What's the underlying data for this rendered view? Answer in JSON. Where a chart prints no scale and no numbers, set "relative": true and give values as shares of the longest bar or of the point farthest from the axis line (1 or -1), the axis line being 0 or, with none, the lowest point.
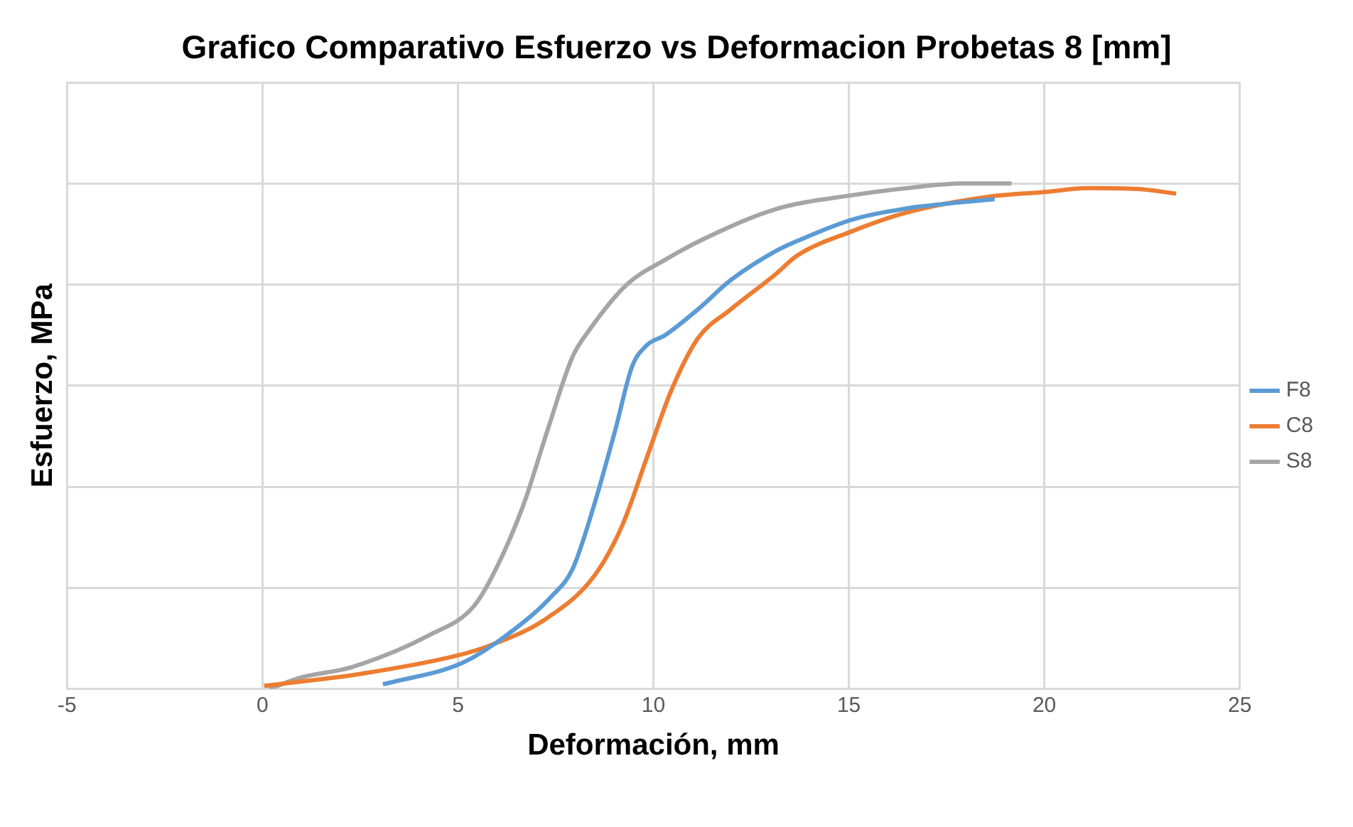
{
  "chart_data": {
    "type": "line",
    "title": "Grafico Comparativo Esfuerzo vs Deformacion Probetas 8 [mm]",
    "xlabel": "Deformación, mm",
    "ylabel": "Esfuerzo, MPa",
    "relative": true,
    "xlim": [
      -5,
      25
    ],
    "xticks": [
      -5,
      0,
      5,
      10,
      15,
      20,
      25
    ],
    "grid": true,
    "legend": "right",
    "marker": "none",
    "line_style": "solid",
    "series": [
      {
        "name": "F8",
        "color": "#5b9bd5",
        "x": [
          3.08,
          5.1,
          6.24,
          7.43,
          7.93,
          8.48,
          9.03,
          9.45,
          9.83,
          10.3,
          11.14,
          11.98,
          13.12,
          13.67,
          15.1,
          16.5,
          17.9,
          18.73
        ],
        "values": [
          0.009,
          0.051,
          0.106,
          0.186,
          0.237,
          0.363,
          0.514,
          0.637,
          0.68,
          0.7,
          0.751,
          0.809,
          0.866,
          0.886,
          0.929,
          0.951,
          0.963,
          0.969
        ]
      },
      {
        "name": "C8",
        "color": "#ed7d31",
        "x": [
          0.04,
          2.45,
          4.98,
          5.82,
          7.22,
          8.48,
          9.2,
          9.87,
          10.46,
          11.14,
          11.98,
          13.12,
          13.67,
          15.1,
          16.5,
          18.6,
          20.0,
          21.14,
          22.4,
          23.37
        ],
        "values": [
          0.006,
          0.029,
          0.066,
          0.086,
          0.137,
          0.223,
          0.323,
          0.466,
          0.591,
          0.694,
          0.751,
          0.82,
          0.857,
          0.906,
          0.943,
          0.974,
          0.983,
          0.991,
          0.989,
          0.98
        ]
      },
      {
        "name": "S8",
        "color": "#a5a5a5",
        "x": [
          0.17,
          1.01,
          2.28,
          4.26,
          5.4,
          5.95,
          6.67,
          7.3,
          7.93,
          8.35,
          9.32,
          10.3,
          11.31,
          13.12,
          15.1,
          16.5,
          17.9,
          19.16
        ],
        "values": [
          0,
          0.023,
          0.043,
          0.106,
          0.163,
          0.234,
          0.363,
          0.514,
          0.657,
          0.709,
          0.8,
          0.849,
          0.891,
          0.949,
          0.977,
          0.991,
          1.0,
          1.0
        ]
      }
    ]
  }
}
